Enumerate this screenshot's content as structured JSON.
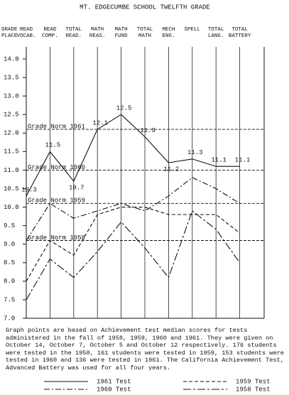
{
  "chart_data": {
    "type": "line",
    "title": "MT. EDGECUMBE SCHOOL TWELFTH GRADE",
    "y_label": "GRADE PLACE",
    "categories": [
      "READ VOCAB.",
      "READ COMP.",
      "TOTAL READ.",
      "MATH REAS.",
      "MATH FUND",
      "TOTAL MATH",
      "MECH ENG.",
      "SPELL",
      "TOTAL LANG.",
      "TOTAL BATTERY"
    ],
    "series": [
      {
        "name": "1961 Test",
        "color": "#111111",
        "style": "solid",
        "data_labels": true,
        "values": [
          10.3,
          11.5,
          10.7,
          12.1,
          12.5,
          11.9,
          11.2,
          11.3,
          11.1,
          11.1
        ]
      },
      {
        "name": "1960 Test",
        "color": "#111111",
        "style": "dash-dot",
        "values": [
          9.1,
          10.1,
          9.7,
          9.9,
          10.1,
          9.9,
          10.3,
          10.8,
          10.5,
          10.1
        ]
      },
      {
        "name": "1959 Test",
        "color": "#111111",
        "style": "dashed",
        "values": [
          8.0,
          9.1,
          8.7,
          9.8,
          10.0,
          10.0,
          9.8,
          9.8,
          9.8,
          9.3
        ]
      },
      {
        "name": "1958 Test",
        "color": "#111111",
        "style": "long-dash",
        "values": [
          7.5,
          8.6,
          8.1,
          8.8,
          9.6,
          8.9,
          8.1,
          9.9,
          9.4,
          8.5
        ]
      }
    ],
    "reference_lines": [
      {
        "label": "Grade Norm 1961",
        "value": 12.1
      },
      {
        "label": "Grade Norm 1960",
        "value": 11.0
      },
      {
        "label": "Grade Norm 1959",
        "value": 10.1
      },
      {
        "label": "Grade Norm 1958",
        "value": 9.1
      }
    ],
    "ylim": [
      7.0,
      14.0
    ],
    "yticks": [
      {
        "value": 7,
        "label": "7.0"
      },
      7.5,
      {
        "value": 8,
        "label": "8.0"
      },
      8.5,
      {
        "value": 9,
        "label": "9.0"
      },
      9.5,
      {
        "value": 10,
        "label": "10.0"
      },
      10.5,
      {
        "value": 11,
        "label": "11.0"
      },
      11.5,
      {
        "value": 12,
        "label": "12.0"
      },
      12.5,
      {
        "value": 13,
        "label": "13.0"
      },
      13.5,
      {
        "value": 14,
        "label": "14.0"
      }
    ],
    "xgrid": true,
    "note": "Graph points are based on Achievement test median scores for tests administered in the fall of 1958, 1959, 1960 and 1961. They were given on October 14, October 7, October 5 and October 12 respectively. 176 students were tested in the 1958, 161 students were tested in 1959, 153 students were tested in 1960 and 136 were tested in 1961. The California Achievement Test, Advanced Battery was used for all four years."
  }
}
